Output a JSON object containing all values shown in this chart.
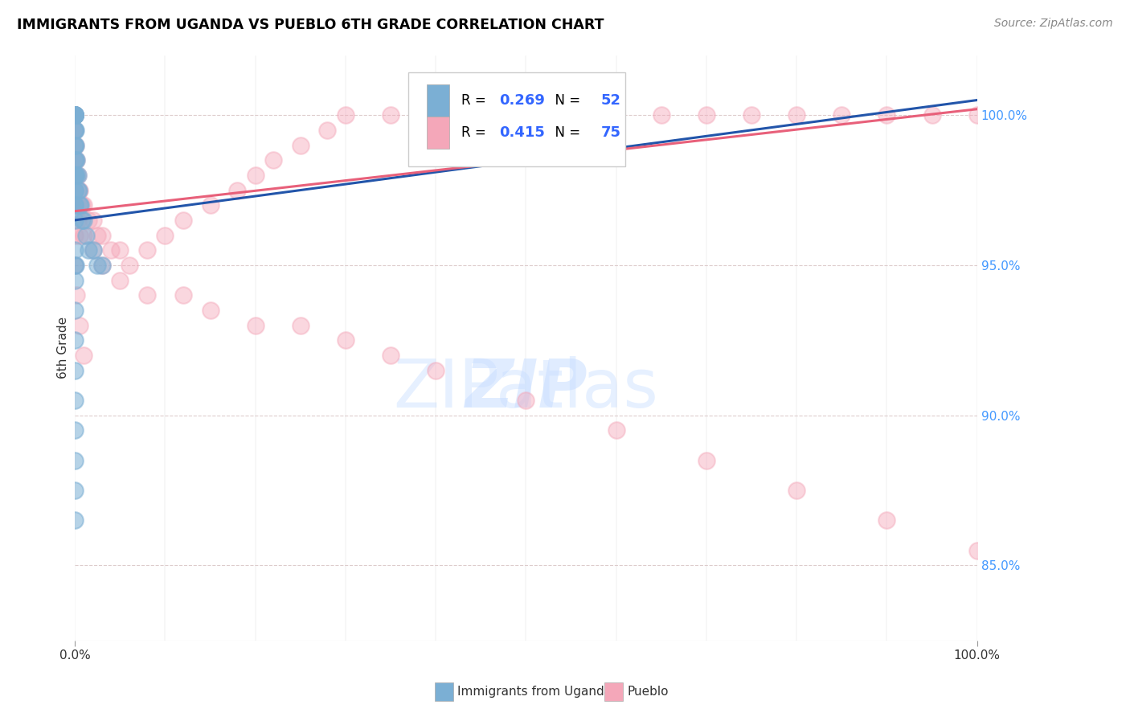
{
  "title": "IMMIGRANTS FROM UGANDA VS PUEBLO 6TH GRADE CORRELATION CHART",
  "source": "Source: ZipAtlas.com",
  "ylabel": "6th Grade",
  "xlim": [
    0,
    100
  ],
  "ylim": [
    82.5,
    102.0
  ],
  "yticks_right": [
    85.0,
    90.0,
    95.0,
    100.0
  ],
  "legend_blue_R": "0.269",
  "legend_blue_N": "52",
  "legend_pink_R": "0.415",
  "legend_pink_N": "75",
  "legend_label_blue": "Immigrants from Uganda",
  "legend_label_pink": "Pueblo",
  "blue_color": "#7BAFD4",
  "pink_color": "#F4A7B9",
  "blue_line_color": "#2255AA",
  "pink_line_color": "#E8607A",
  "blue_scatter_alpha": 0.55,
  "pink_scatter_alpha": 0.45,
  "blue_scatter_size": 220,
  "pink_scatter_size": 220,
  "blue_x": [
    0.0,
    0.0,
    0.0,
    0.0,
    0.0,
    0.0,
    0.0,
    0.0,
    0.0,
    0.0,
    0.0,
    0.0,
    0.0,
    0.0,
    0.0,
    0.0,
    0.0,
    0.0,
    0.0,
    0.0,
    0.0,
    0.0,
    0.1,
    0.1,
    0.1,
    0.1,
    0.2,
    0.2,
    0.3,
    0.3,
    0.4,
    0.5,
    0.6,
    0.8,
    1.0,
    1.2,
    1.5,
    2.0,
    2.5,
    3.0,
    0.0,
    0.0,
    0.0,
    0.1,
    0.0,
    0.0,
    0.0,
    0.0,
    0.0,
    0.0,
    0.0,
    0.0
  ],
  "blue_y": [
    100.0,
    100.0,
    100.0,
    100.0,
    100.0,
    100.0,
    100.0,
    100.0,
    100.0,
    100.0,
    99.5,
    99.5,
    99.0,
    99.0,
    98.5,
    98.0,
    98.0,
    97.5,
    97.5,
    97.0,
    97.0,
    96.5,
    99.5,
    99.0,
    98.5,
    98.0,
    98.5,
    98.0,
    98.0,
    97.5,
    97.5,
    97.0,
    97.0,
    96.5,
    96.5,
    96.0,
    95.5,
    95.5,
    95.0,
    95.0,
    95.5,
    95.0,
    94.5,
    95.0,
    93.5,
    92.5,
    91.5,
    90.5,
    89.5,
    88.5,
    87.5,
    86.5
  ],
  "pink_x": [
    0.0,
    0.0,
    0.0,
    0.0,
    0.0,
    0.0,
    0.0,
    0.0,
    0.1,
    0.1,
    0.2,
    0.2,
    0.3,
    0.4,
    0.5,
    0.6,
    0.8,
    1.0,
    1.5,
    2.0,
    2.5,
    3.0,
    4.0,
    5.0,
    6.0,
    8.0,
    10.0,
    12.0,
    15.0,
    18.0,
    20.0,
    22.0,
    25.0,
    28.0,
    30.0,
    35.0,
    40.0,
    45.0,
    50.0,
    55.0,
    60.0,
    65.0,
    70.0,
    75.0,
    80.0,
    85.0,
    90.0,
    95.0,
    100.0,
    0.1,
    0.3,
    0.5,
    1.0,
    2.0,
    3.0,
    5.0,
    8.0,
    12.0,
    15.0,
    20.0,
    25.0,
    30.0,
    35.0,
    40.0,
    50.0,
    60.0,
    70.0,
    80.0,
    90.0,
    100.0,
    0.0,
    0.0,
    0.2,
    0.5,
    1.0
  ],
  "pink_y": [
    100.0,
    100.0,
    100.0,
    100.0,
    99.5,
    99.5,
    99.0,
    98.5,
    99.0,
    98.5,
    98.5,
    98.0,
    98.0,
    97.5,
    97.5,
    97.0,
    97.0,
    97.0,
    96.5,
    96.5,
    96.0,
    96.0,
    95.5,
    95.5,
    95.0,
    95.5,
    96.0,
    96.5,
    97.0,
    97.5,
    98.0,
    98.5,
    99.0,
    99.5,
    100.0,
    100.0,
    100.0,
    100.0,
    100.0,
    100.0,
    100.0,
    100.0,
    100.0,
    100.0,
    100.0,
    100.0,
    100.0,
    100.0,
    100.0,
    97.0,
    96.5,
    96.0,
    96.0,
    95.5,
    95.0,
    94.5,
    94.0,
    94.0,
    93.5,
    93.0,
    93.0,
    92.5,
    92.0,
    91.5,
    90.5,
    89.5,
    88.5,
    87.5,
    86.5,
    85.5,
    96.0,
    95.0,
    94.0,
    93.0,
    92.0
  ],
  "blue_trend_x0": 0.0,
  "blue_trend_x1": 100.0,
  "blue_trend_y0": 96.5,
  "blue_trend_y1": 100.5,
  "pink_trend_x0": 0.0,
  "pink_trend_x1": 100.0,
  "pink_trend_y0": 96.8,
  "pink_trend_y1": 100.2
}
